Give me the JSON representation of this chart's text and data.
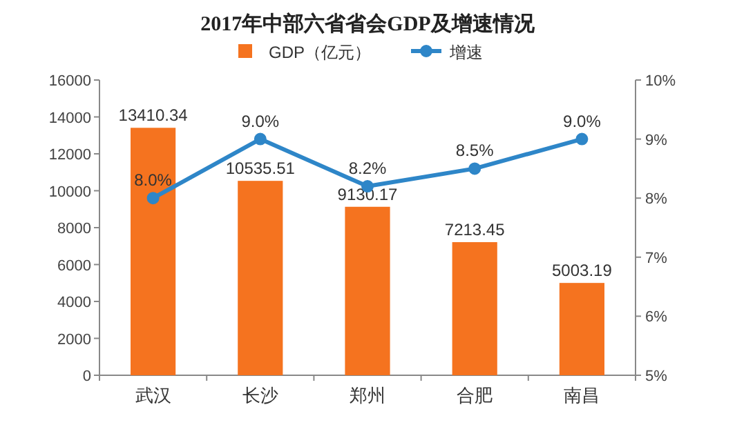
{
  "chart_data": {
    "type": "bar",
    "title": "2017年中部六省省会GDP及增速情况",
    "categories": [
      "武汉",
      "长沙",
      "郑州",
      "合肥",
      "南昌"
    ],
    "series": [
      {
        "name": "GDP（亿元）",
        "color": "#f5731f",
        "values": [
          13410.34,
          10535.51,
          9130.17,
          7213.45,
          5003.19
        ],
        "value_labels": [
          "13410.34",
          "10535.51",
          "9130.17",
          "7213.45",
          "5003.19"
        ]
      },
      {
        "name": "增速",
        "type": "line",
        "axis": "y2",
        "color": "#2e86c8",
        "marker": "circle",
        "values": [
          8.0,
          9.0,
          8.2,
          8.5,
          9.0
        ],
        "value_labels": [
          "8.0%",
          "9.0%",
          "8.2%",
          "8.5%",
          "9.0%"
        ]
      }
    ],
    "ylim": [
      0,
      16000
    ],
    "yticks": [
      0,
      2000,
      4000,
      6000,
      8000,
      10000,
      12000,
      14000,
      16000
    ],
    "y2lim": [
      5,
      10
    ],
    "y2ticks": [
      {
        "value": 5,
        "label": "5%"
      },
      {
        "value": 6,
        "label": "6%"
      },
      {
        "value": 7,
        "label": "7%"
      },
      {
        "value": 8,
        "label": "8%"
      },
      {
        "value": 9,
        "label": "9%"
      },
      {
        "value": 10,
        "label": "10%"
      }
    ],
    "legend": "top",
    "grid": false
  }
}
